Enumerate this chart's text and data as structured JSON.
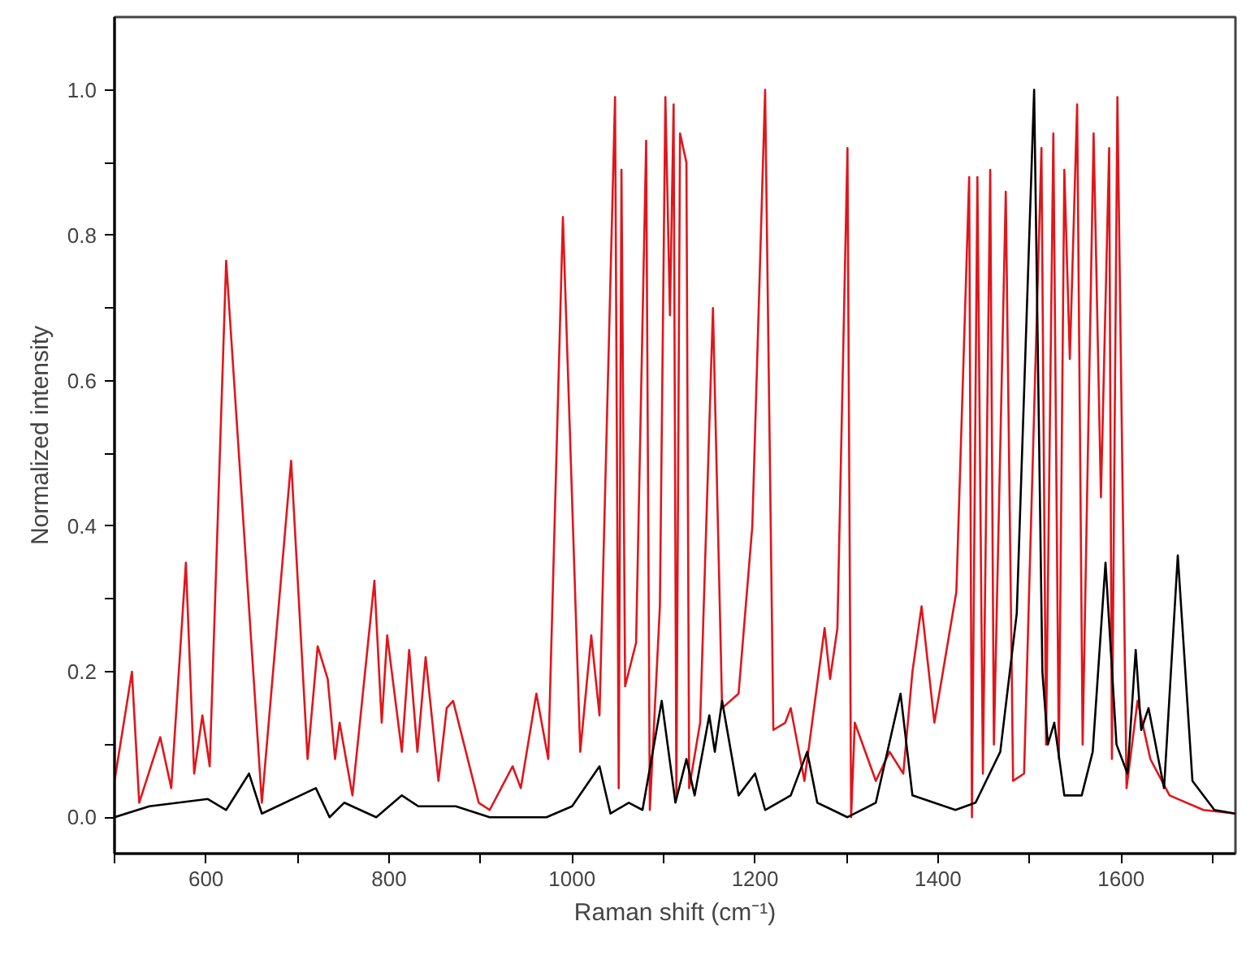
{
  "chart_data": {
    "type": "line",
    "xlabel": "Raman shift (cm⁻¹)",
    "ylabel": "Normalized intensity",
    "xlim": [
      500,
      1725
    ],
    "ylim": [
      -0.05,
      1.1
    ],
    "xticks": [
      {
        "value": 500,
        "label": null
      },
      600,
      {
        "value": 700,
        "label": null
      },
      800,
      {
        "value": 900,
        "label": null
      },
      1000,
      {
        "value": 1100,
        "label": null
      },
      1200,
      {
        "value": 1300,
        "label": null
      },
      1400,
      {
        "value": 1500,
        "label": null
      },
      1600,
      {
        "value": 1700,
        "label": null
      }
    ],
    "yticks": [
      {
        "value": 0,
        "label": "0.0"
      },
      {
        "value": 0.1,
        "label": null
      },
      {
        "value": 0.2,
        "label": "0.2"
      },
      {
        "value": 0.3,
        "label": null
      },
      {
        "value": 0.4,
        "label": "0.4"
      },
      {
        "value": 0.5,
        "label": null
      },
      {
        "value": 0.6,
        "label": "0.6"
      },
      {
        "value": 0.7,
        "label": null
      },
      {
        "value": 0.8,
        "label": "0.8"
      },
      {
        "value": 0.9,
        "label": null
      },
      {
        "value": 1.0,
        "label": "1.0"
      }
    ],
    "grid": false,
    "marker": "none",
    "line_style": "solid",
    "series": [
      {
        "color": "#e0161b",
        "x": [
          500,
          519,
          527,
          550,
          562,
          578,
          587,
          596,
          604,
          622,
          661,
          693,
          711,
          722,
          733,
          741,
          746,
          760,
          784,
          792,
          798,
          814,
          822,
          831,
          840,
          854,
          863,
          870,
          898,
          910,
          935,
          944,
          961,
          974,
          990,
          1009,
          1021,
          1030,
          1047,
          1051,
          1054,
          1058,
          1070,
          1081,
          1085,
          1096,
          1102,
          1107,
          1111,
          1114,
          1118,
          1125,
          1128,
          1140,
          1154,
          1164,
          1182,
          1197,
          1211,
          1220,
          1233,
          1239,
          1254,
          1276,
          1282,
          1290,
          1301,
          1305,
          1309,
          1332,
          1347,
          1362,
          1372,
          1382,
          1396,
          1420,
          1434,
          1437,
          1443,
          1449,
          1457,
          1461,
          1474,
          1482,
          1494,
          1513,
          1518,
          1526,
          1532,
          1538,
          1544,
          1552,
          1558,
          1570,
          1578,
          1587,
          1590,
          1596,
          1606,
          1618,
          1632,
          1653,
          1690,
          1725
        ],
        "values": [
          0.05,
          0.2,
          0.02,
          0.11,
          0.04,
          0.35,
          0.06,
          0.14,
          0.07,
          0.765,
          0.02,
          0.49,
          0.08,
          0.235,
          0.19,
          0.08,
          0.13,
          0.03,
          0.325,
          0.13,
          0.25,
          0.09,
          0.23,
          0.09,
          0.22,
          0.05,
          0.15,
          0.16,
          0.02,
          0.01,
          0.07,
          0.04,
          0.17,
          0.08,
          0.825,
          0.09,
          0.25,
          0.14,
          0.99,
          0.04,
          0.89,
          0.18,
          0.24,
          0.93,
          0.01,
          0.29,
          0.99,
          0.69,
          0.98,
          0.03,
          0.94,
          0.9,
          0.04,
          0.13,
          0.7,
          0.15,
          0.17,
          0.4,
          1.0,
          0.12,
          0.13,
          0.15,
          0.05,
          0.26,
          0.19,
          0.26,
          0.92,
          0.0,
          0.13,
          0.05,
          0.09,
          0.06,
          0.2,
          0.29,
          0.13,
          0.31,
          0.88,
          0.0,
          0.88,
          0.06,
          0.89,
          0.1,
          0.86,
          0.05,
          0.06,
          0.92,
          0.1,
          0.94,
          0.08,
          0.89,
          0.63,
          0.98,
          0.1,
          0.94,
          0.44,
          0.92,
          0.08,
          0.99,
          0.04,
          0.16,
          0.08,
          0.03,
          0.01,
          0.005
        ]
      },
      {
        "color": "#000000",
        "x": [
          500,
          538,
          602,
          622,
          647,
          661,
          720,
          735,
          751,
          786,
          814,
          832,
          854,
          873,
          910,
          972,
          1000,
          1030,
          1042,
          1062,
          1077,
          1098,
          1113,
          1125,
          1134,
          1150,
          1156,
          1164,
          1182,
          1200,
          1211,
          1239,
          1257,
          1268,
          1301,
          1332,
          1359,
          1372,
          1419,
          1441,
          1468,
          1486,
          1505,
          1514,
          1520,
          1527,
          1538,
          1557,
          1569,
          1583,
          1595,
          1607,
          1616,
          1622,
          1630,
          1647,
          1662,
          1678,
          1702,
          1725
        ],
        "values": [
          0.0,
          0.015,
          0.025,
          0.01,
          0.06,
          0.005,
          0.04,
          0.0,
          0.02,
          0.0,
          0.03,
          0.015,
          0.015,
          0.015,
          0.0,
          0.0,
          0.015,
          0.07,
          0.005,
          0.02,
          0.01,
          0.16,
          0.02,
          0.08,
          0.03,
          0.14,
          0.09,
          0.16,
          0.03,
          0.06,
          0.01,
          0.03,
          0.09,
          0.02,
          0.0,
          0.02,
          0.17,
          0.03,
          0.01,
          0.02,
          0.09,
          0.28,
          1.0,
          0.2,
          0.1,
          0.13,
          0.03,
          0.03,
          0.09,
          0.35,
          0.1,
          0.06,
          0.23,
          0.12,
          0.15,
          0.04,
          0.36,
          0.05,
          0.01,
          0.005
        ]
      }
    ]
  }
}
